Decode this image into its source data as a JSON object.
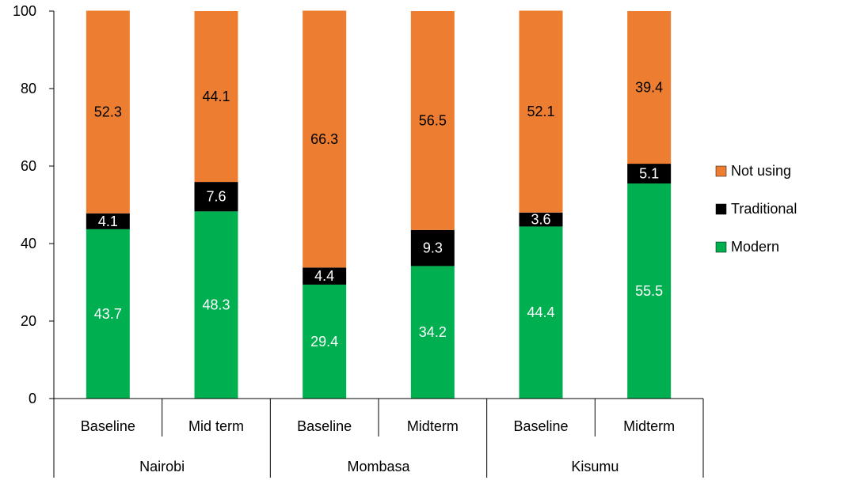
{
  "chart_data": {
    "type": "bar",
    "stacked": true,
    "ylim": [
      0,
      100
    ],
    "yticks": [
      0,
      20,
      40,
      60,
      80,
      100
    ],
    "categories": [
      "Baseline",
      "Mid term",
      "Baseline",
      "Midterm",
      "Baseline",
      "Midterm"
    ],
    "groups": [
      {
        "label": "Nairobi",
        "span": 2
      },
      {
        "label": "Mombasa",
        "span": 2
      },
      {
        "label": "Kisumu",
        "span": 2
      }
    ],
    "series": [
      {
        "name": "Modern",
        "color": "#00B050",
        "label_color": "#ffffff",
        "values": [
          43.7,
          48.3,
          29.4,
          34.2,
          44.4,
          55.5
        ]
      },
      {
        "name": "Traditional",
        "color": "#000000",
        "label_color": "#ffffff",
        "values": [
          4.1,
          7.6,
          4.4,
          9.3,
          3.6,
          5.1
        ]
      },
      {
        "name": "Not using",
        "color": "#ED7D31",
        "label_color": "#000000",
        "values": [
          52.3,
          44.1,
          66.3,
          56.5,
          52.1,
          39.4
        ]
      }
    ],
    "legend": {
      "position": "right",
      "order": [
        "Not using",
        "Traditional",
        "Modern"
      ]
    }
  }
}
